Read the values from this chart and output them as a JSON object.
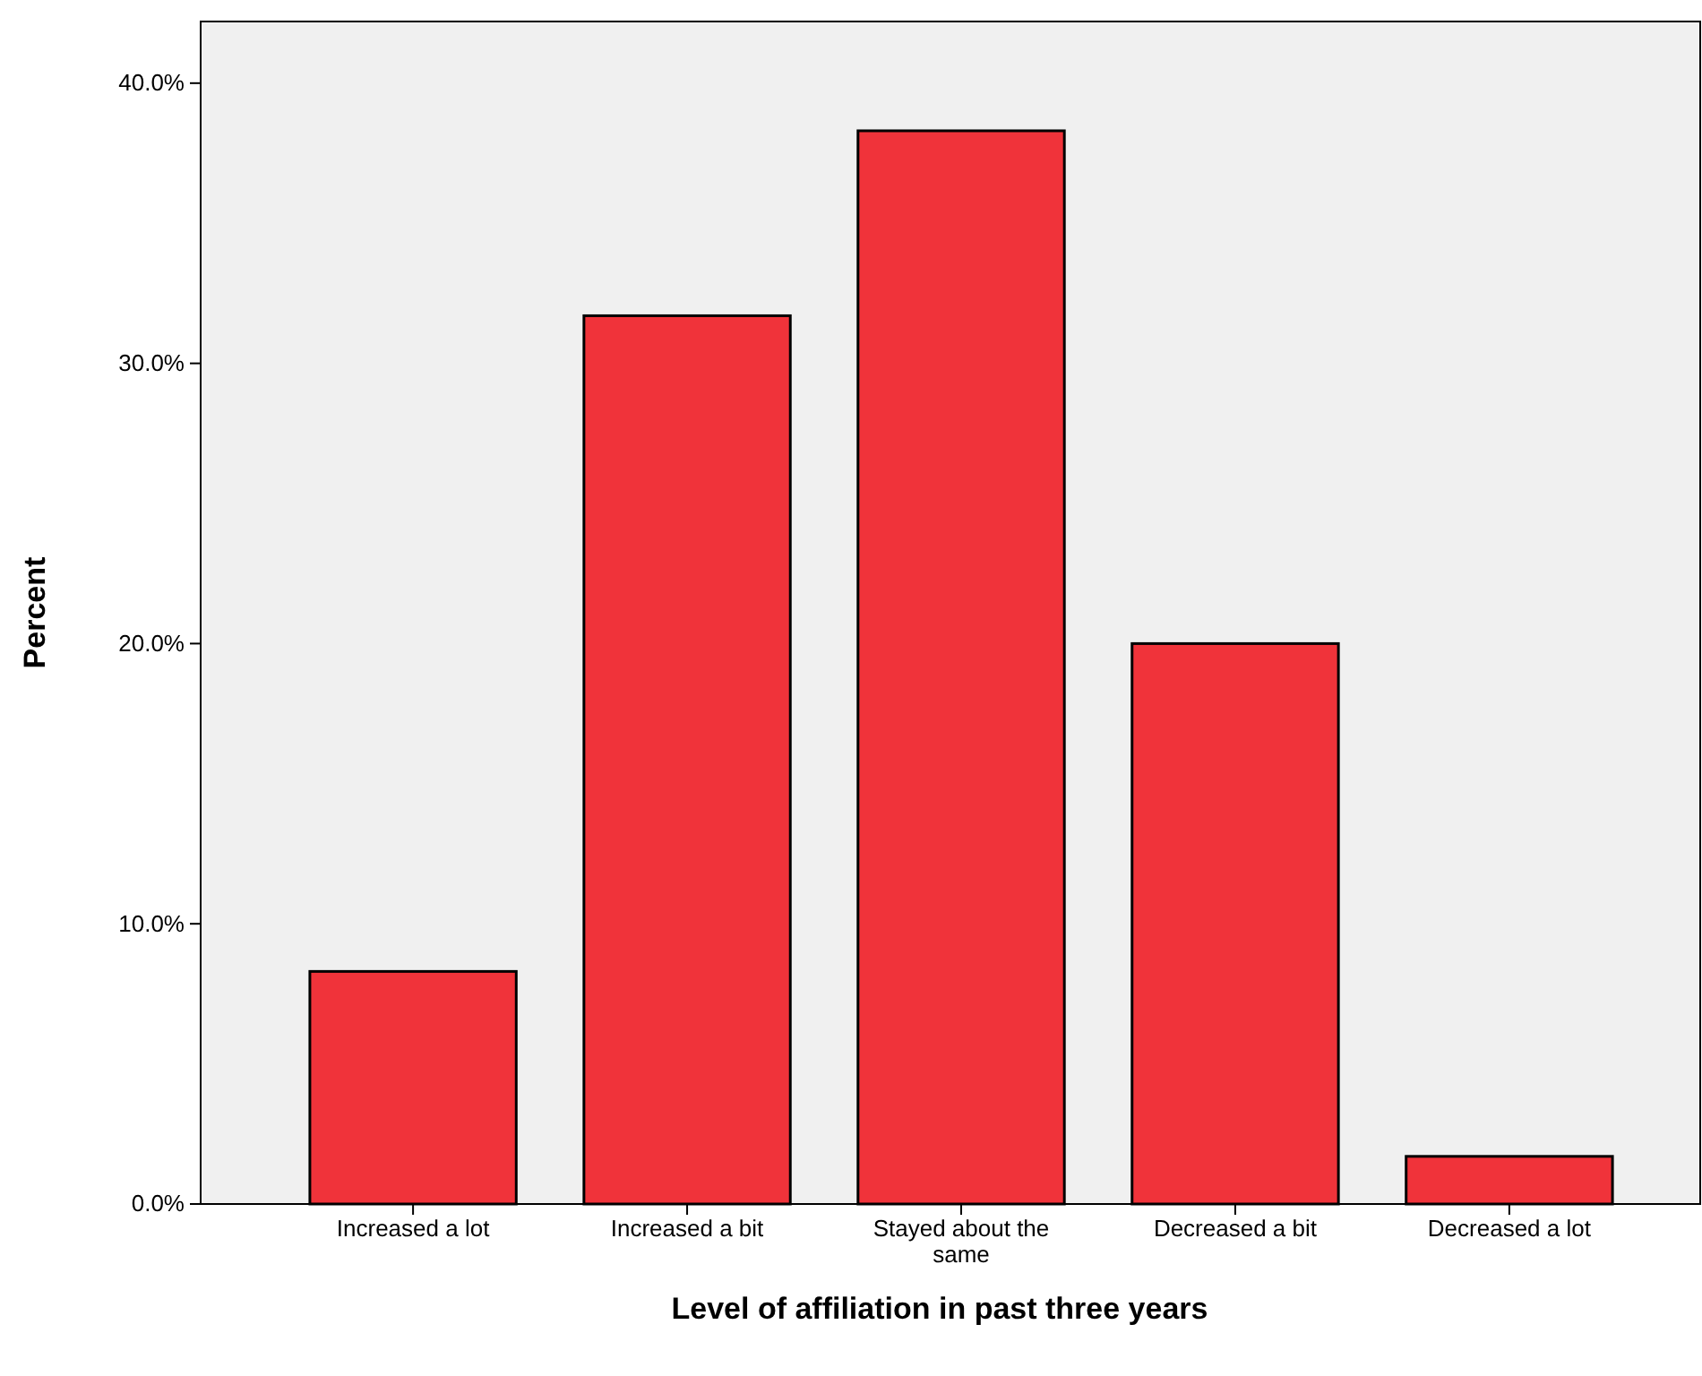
{
  "chart_data": {
    "type": "bar",
    "xlabel": "Level of affiliation in past three years",
    "ylabel": "Percent",
    "categories": [
      "Increased a lot",
      "Increased a bit",
      "Stayed about the same",
      "Decreased a bit",
      "Decreased a lot"
    ],
    "values": [
      8.3,
      31.7,
      38.3,
      20.0,
      1.7
    ],
    "color": "#f0333a",
    "ylim": [
      0,
      42.2
    ],
    "yticks": [
      {
        "value": 0,
        "label": "0.0%"
      },
      {
        "value": 10,
        "label": "10.0%"
      },
      {
        "value": 20,
        "label": "20.0%"
      },
      {
        "value": 30,
        "label": "30.0%"
      },
      {
        "value": 40,
        "label": "40.0%"
      }
    ],
    "grid": false,
    "legend": false
  }
}
